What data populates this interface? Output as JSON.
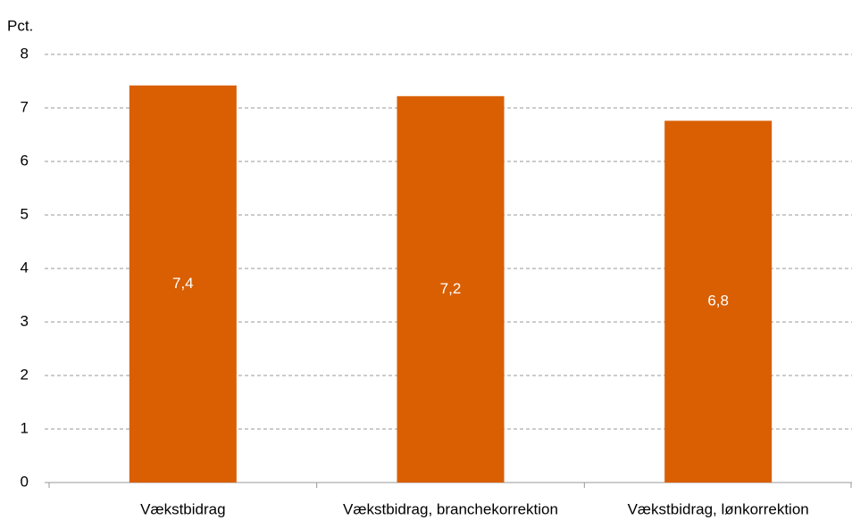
{
  "chart_data": {
    "type": "bar",
    "y_axis_label": "Pct.",
    "categories": [
      "Vækstbidrag",
      "Vækstbidrag, branchekorrektion",
      "Vækstbidrag, lønkorrektion"
    ],
    "values": [
      7.42,
      7.22,
      6.76
    ],
    "value_labels": [
      "7,4",
      "7,2",
      "6,8"
    ],
    "color": "#d95f02",
    "ylim": [
      0,
      8
    ],
    "yticks": [
      0,
      1,
      2,
      3,
      4,
      5,
      6,
      7,
      8
    ],
    "grid": true
  }
}
